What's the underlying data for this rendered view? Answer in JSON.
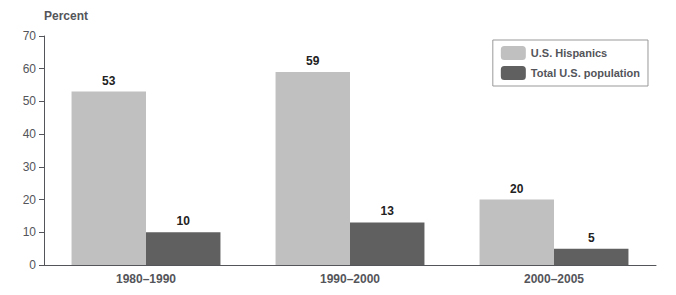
{
  "chart_data": {
    "type": "bar",
    "ylabel": "Percent",
    "categories": [
      "1980–1990",
      "1990–2000",
      "2000–2005"
    ],
    "series": [
      {
        "name": "U.S. Hispanics",
        "color": "#c0c0c0",
        "values": [
          53,
          59,
          20
        ]
      },
      {
        "name": "Total U.S. population",
        "color": "#606060",
        "values": [
          10,
          13,
          5
        ]
      }
    ],
    "ylim": [
      0,
      70
    ],
    "yticks": [
      0,
      10,
      20,
      30,
      40,
      50,
      60,
      70
    ],
    "grid": false,
    "legend": "upper right",
    "data_labels": true
  }
}
